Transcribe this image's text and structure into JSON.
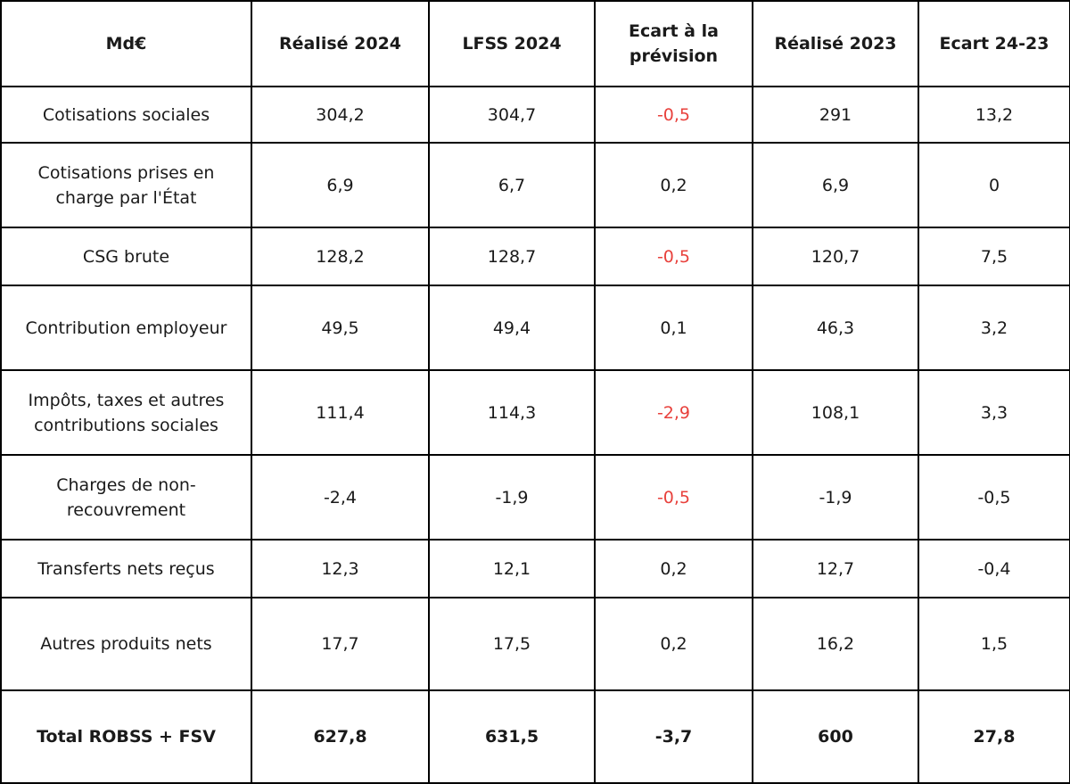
{
  "header": {
    "col0": "Md€",
    "col1": "Réalisé 2024",
    "col2": "LFSS 2024",
    "col3": "Ecart à la prévision",
    "col4": "Réalisé 2023",
    "col5": "Ecart 24-23"
  },
  "rows": [
    {
      "label": "Cotisations sociales",
      "real2024": "304,2",
      "lfss2024": "304,7",
      "ecart_prev": "-0,5",
      "ecart_prev_negative": true,
      "real2023": "291",
      "ecart_24_23": "13,2"
    },
    {
      "label": "Cotisations prises en charge par l'État",
      "real2024": "6,9",
      "lfss2024": "6,7",
      "ecart_prev": "0,2",
      "ecart_prev_negative": false,
      "real2023": "6,9",
      "ecart_24_23": "0"
    },
    {
      "label": "CSG brute",
      "real2024": "128,2",
      "lfss2024": "128,7",
      "ecart_prev": "-0,5",
      "ecart_prev_negative": true,
      "real2023": "120,7",
      "ecart_24_23": "7,5"
    },
    {
      "label": "Contribution employeur",
      "real2024": "49,5",
      "lfss2024": "49,4",
      "ecart_prev": "0,1",
      "ecart_prev_negative": false,
      "real2023": "46,3",
      "ecart_24_23": "3,2"
    },
    {
      "label": "Impôts, taxes et autres contributions sociales",
      "real2024": "111,4",
      "lfss2024": "114,3",
      "ecart_prev": "-2,9",
      "ecart_prev_negative": true,
      "real2023": "108,1",
      "ecart_24_23": "3,3"
    },
    {
      "label": "Charges de non-recouvrement",
      "real2024": "-2,4",
      "lfss2024": "-1,9",
      "ecart_prev": "-0,5",
      "ecart_prev_negative": true,
      "real2023": "-1,9",
      "ecart_24_23": "-0,5"
    },
    {
      "label": "Transferts nets reçus",
      "real2024": "12,3",
      "lfss2024": "12,1",
      "ecart_prev": "0,2",
      "ecart_prev_negative": false,
      "real2023": "12,7",
      "ecart_24_23": "-0,4"
    },
    {
      "label": "Autres produits nets",
      "real2024": "17,7",
      "lfss2024": "17,5",
      "ecart_prev": "0,2",
      "ecart_prev_negative": false,
      "real2023": "16,2",
      "ecart_24_23": "1,5"
    }
  ],
  "total": {
    "label": "Total ROBSS + FSV",
    "real2024": "627,8",
    "lfss2024": "631,5",
    "ecart_prev": "-3,7",
    "real2023": "600",
    "ecart_24_23": "27,8"
  },
  "colors": {
    "negative_forecast_gap": "#e8413c",
    "border": "#000000",
    "text": "#1a1a1a"
  }
}
